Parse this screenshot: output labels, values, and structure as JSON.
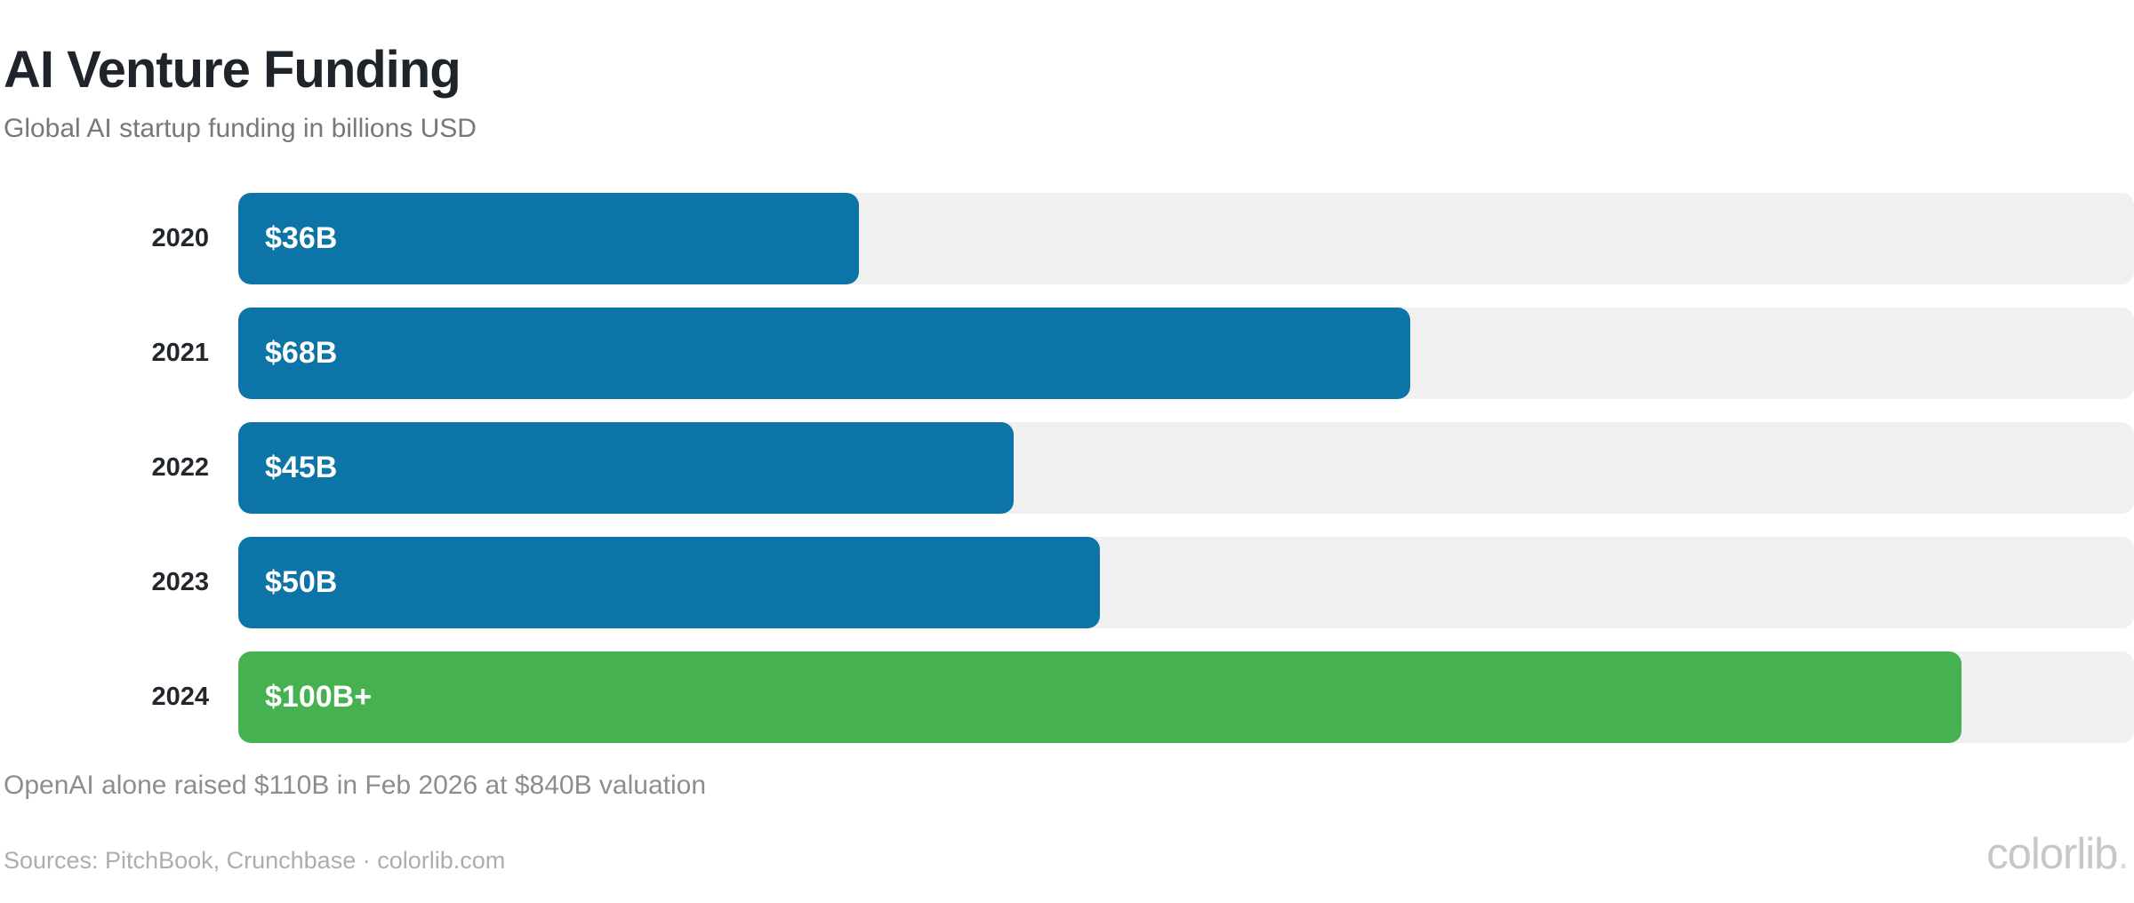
{
  "header": {
    "title": "AI Venture Funding",
    "subtitle": "Global AI startup funding in billions USD"
  },
  "chart_data": {
    "type": "bar",
    "orientation": "horizontal",
    "categories": [
      "2020",
      "2021",
      "2022",
      "2023",
      "2024"
    ],
    "values": [
      36,
      68,
      45,
      50,
      100
    ],
    "value_labels": [
      "$36B",
      "$68B",
      "$45B",
      "$50B",
      "$100B+"
    ],
    "axis_max": 110,
    "highlight_index": 4,
    "colors": {
      "bar": "#0d74a7",
      "highlight": "#46b150",
      "track": "#f0f0f0",
      "value_text": "#ffffff"
    },
    "title": "AI Venture Funding",
    "xlabel": "",
    "ylabel": "",
    "legend": false,
    "grid": false
  },
  "footnote": "OpenAI alone raised $110B in Feb 2026 at $840B valuation",
  "footer": {
    "sources": "Sources: PitchBook, Crunchbase · colorlib.com",
    "logo_text": "colorlib",
    "logo_dot": "."
  }
}
